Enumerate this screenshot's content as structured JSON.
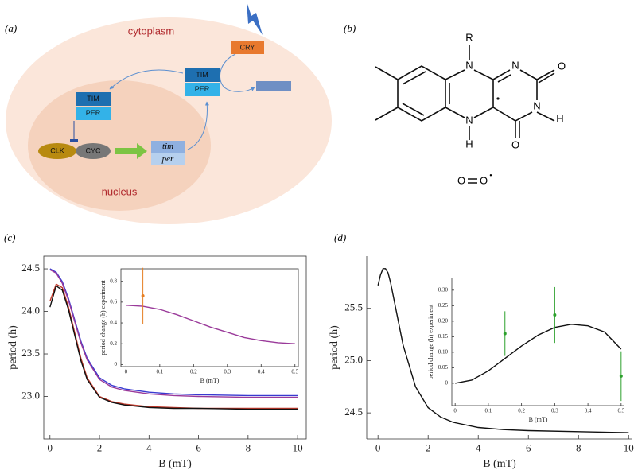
{
  "panels": {
    "a": "(a)",
    "b": "(b)",
    "c": "(c)",
    "d": "(d)"
  },
  "diagram": {
    "cytoplasm": "cytoplasm",
    "nucleus": "nucleus",
    "cry": "CRY",
    "tim_cyto": "TIM",
    "per_cyto": "PER",
    "tim_nuc": "TIM",
    "per_nuc": "PER",
    "clk": "CLK",
    "cyc": "CYC",
    "tim_gene": "tim",
    "per_gene": "per"
  },
  "molecule": {
    "r": "R",
    "n10": "N",
    "n1": "N",
    "o2": "O",
    "n3": "N",
    "h3": "H",
    "n5": "N",
    "h5": "H",
    "o4": "O",
    "superoxide": {
      "left": "O",
      "right": "O",
      "radical": "•"
    }
  },
  "chart_data": [
    {
      "type": "line",
      "xlabel": "B (mT)",
      "ylabel": "period (h)",
      "xlim": [
        -0.25,
        10.35
      ],
      "ylim": [
        22.5,
        24.65
      ],
      "xticks": [
        0,
        2,
        4,
        6,
        8,
        10
      ],
      "yticks": [
        {
          "value": 23,
          "label": "23.0"
        },
        23.5,
        {
          "value": 24,
          "label": "24.0"
        },
        24.5
      ],
      "series": [
        {
          "type": "line",
          "color": "#3a3ad0",
          "x": [
            0,
            0.25,
            0.5,
            0.75,
            1,
            1.25,
            1.5,
            2,
            2.5,
            3,
            4,
            5,
            6,
            8,
            10
          ],
          "values": [
            24.5,
            24.46,
            24.35,
            24.15,
            23.9,
            23.65,
            23.45,
            23.22,
            23.13,
            23.09,
            23.05,
            23.03,
            23.02,
            23.01,
            23.01
          ]
        },
        {
          "type": "line",
          "color": "#9a3a9a",
          "x": [
            0,
            0.25,
            0.5,
            0.75,
            1,
            1.25,
            1.5,
            2,
            2.5,
            3,
            4,
            5,
            6,
            8,
            10
          ],
          "values": [
            24.49,
            24.45,
            24.33,
            24.13,
            23.88,
            23.63,
            23.43,
            23.2,
            23.11,
            23.07,
            23.03,
            23.01,
            23.0,
            22.99,
            22.99
          ]
        },
        {
          "type": "line",
          "color": "#c0392b",
          "x": [
            0,
            0.25,
            0.5,
            0.75,
            1,
            1.25,
            1.5,
            2,
            2.5,
            3,
            4,
            5,
            6,
            8,
            10
          ],
          "values": [
            24.12,
            24.32,
            24.28,
            24.05,
            23.75,
            23.45,
            23.22,
            23.0,
            22.94,
            22.91,
            22.88,
            22.87,
            22.86,
            22.86,
            22.86
          ]
        },
        {
          "type": "line",
          "color": "#111111",
          "x": [
            0,
            0.25,
            0.5,
            0.75,
            1,
            1.25,
            1.5,
            2,
            2.5,
            3,
            4,
            5,
            6,
            8,
            10
          ],
          "values": [
            24.05,
            24.3,
            24.25,
            24.02,
            23.72,
            23.42,
            23.2,
            22.99,
            22.93,
            22.9,
            22.87,
            22.86,
            22.86,
            22.85,
            22.85
          ]
        }
      ]
    },
    {
      "type": "line",
      "xlabel": "B (mT)",
      "ylabel": "period change (h) experiment",
      "xlim": [
        -0.015,
        0.51
      ],
      "ylim": [
        -0.02,
        0.92
      ],
      "xticks": [
        0,
        0.1,
        0.2,
        0.3,
        0.4,
        0.5
      ],
      "yticks": [
        0,
        0.2,
        0.4,
        0.6,
        0.8
      ],
      "series": [
        {
          "type": "line",
          "color": "#9a3a9a",
          "x": [
            0,
            0.05,
            0.1,
            0.15,
            0.2,
            0.25,
            0.3,
            0.35,
            0.4,
            0.45,
            0.5
          ],
          "values": [
            0.57,
            0.56,
            0.53,
            0.48,
            0.42,
            0.36,
            0.31,
            0.26,
            0.23,
            0.21,
            0.2
          ]
        },
        {
          "type": "scatter",
          "color": "#e67e22",
          "x": [
            0.05
          ],
          "values": [
            0.66
          ],
          "errors": [
            0.27
          ]
        }
      ]
    },
    {
      "type": "line",
      "xlabel": "B (mT)",
      "ylabel": "period (h)",
      "xlim": [
        -0.45,
        10.15
      ],
      "ylim": [
        24.25,
        26.0
      ],
      "xticks": [
        0,
        2,
        4,
        6,
        8,
        10
      ],
      "yticks": [
        24.5,
        {
          "value": 25,
          "label": "25.0"
        },
        25.5
      ],
      "series": [
        {
          "type": "line",
          "color": "#111111",
          "x": [
            0,
            0.1,
            0.2,
            0.3,
            0.4,
            0.5,
            0.75,
            1,
            1.5,
            2,
            2.5,
            3,
            4,
            5,
            6,
            8,
            10
          ],
          "values": [
            25.72,
            25.82,
            25.88,
            25.88,
            25.84,
            25.75,
            25.45,
            25.15,
            24.75,
            24.55,
            24.46,
            24.41,
            24.36,
            24.34,
            24.33,
            24.32,
            24.31
          ]
        }
      ]
    },
    {
      "type": "line",
      "xlabel": "B (mT)",
      "ylabel": "period change (h) experiment",
      "xlim": [
        -0.01,
        0.51
      ],
      "ylim": [
        -0.072,
        0.338
      ],
      "xticks": [
        0,
        0.1,
        0.2,
        0.3,
        0.4,
        0.5
      ],
      "yticks": [
        0,
        0.05,
        {
          "value": 0.1,
          "label": "0.10"
        },
        0.15,
        {
          "value": 0.2,
          "label": "0.20"
        },
        0.25,
        {
          "value": 0.3,
          "label": "0.30"
        }
      ],
      "series": [
        {
          "type": "line",
          "color": "#111111",
          "x": [
            0,
            0.05,
            0.1,
            0.15,
            0.2,
            0.25,
            0.3,
            0.35,
            0.4,
            0.45,
            0.5
          ],
          "values": [
            0,
            0.01,
            0.04,
            0.08,
            0.12,
            0.155,
            0.18,
            0.19,
            0.185,
            0.165,
            0.11
          ]
        },
        {
          "type": "scatter",
          "color": "#2ca02c",
          "x": [
            0.15,
            0.3,
            0.5
          ],
          "values": [
            0.16,
            0.22,
            0.023
          ],
          "errors": [
            0.072,
            0.09,
            0.08
          ]
        }
      ]
    }
  ]
}
